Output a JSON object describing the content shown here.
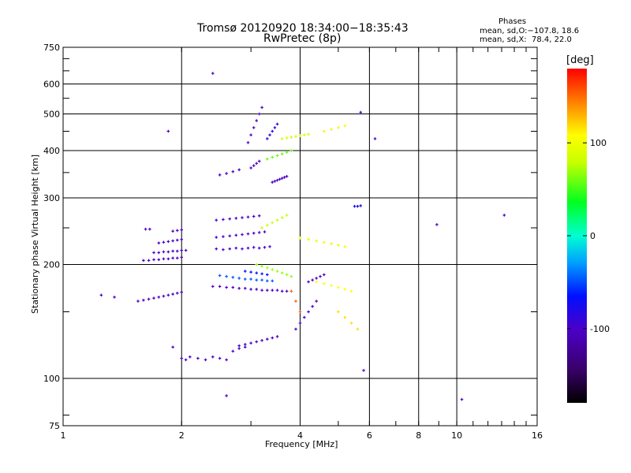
{
  "header": {
    "title_line1": "Tromsø 20120920 18:34:00−18:35:43",
    "title_line2": "RwPretec (8p)",
    "stats_title": "Phases",
    "stats_line1": "mean, sd,O:−107.8, 18.6",
    "stats_line2": "mean, sd,X:  78.4, 22.0"
  },
  "chart_data": {
    "type": "scatter",
    "xlabel": "Frequency [MHz]",
    "ylabel": "Stationary phase Virtual Height [km]",
    "x_scale": "log",
    "y_scale": "log",
    "xlim": [
      1,
      16
    ],
    "ylim": [
      75,
      750
    ],
    "grid": true,
    "x_ticks": [
      1,
      2,
      4,
      6,
      8,
      10,
      16
    ],
    "y_ticks": [
      75,
      100,
      200,
      300,
      400,
      500,
      600,
      750
    ],
    "x_gridlines": [
      2,
      4,
      6,
      8,
      10
    ],
    "y_gridlines": [
      100,
      200,
      300,
      400,
      500,
      600
    ],
    "colorbar": {
      "label": "[deg]",
      "ticks": [
        100,
        0,
        -100
      ],
      "range": [
        -180,
        180
      ]
    },
    "series": [
      {
        "x": [
          1.55,
          1.6,
          1.65,
          1.7,
          1.75,
          1.8,
          1.85,
          1.9,
          1.95,
          2.0
        ],
        "y": [
          160,
          161,
          162,
          163,
          164,
          165,
          166,
          167,
          168,
          169
        ],
        "phase": -110
      },
      {
        "x": [
          1.6,
          1.65,
          1.7,
          1.75,
          1.8,
          1.85,
          1.9,
          1.95,
          2.0
        ],
        "y": [
          205,
          205,
          206,
          206,
          207,
          207,
          208,
          208,
          209
        ],
        "phase": -110
      },
      {
        "x": [
          1.7,
          1.75,
          1.8,
          1.85,
          1.9,
          1.95,
          2.0,
          2.05
        ],
        "y": [
          215,
          215,
          216,
          216,
          217,
          217,
          218,
          218
        ],
        "phase": -110
      },
      {
        "x": [
          1.75,
          1.8,
          1.85,
          1.9,
          1.95,
          2.0
        ],
        "y": [
          228,
          229,
          230,
          231,
          232,
          233
        ],
        "phase": -110
      },
      {
        "x": [
          1.62,
          1.66,
          1.9,
          1.95,
          2.0
        ],
        "y": [
          248,
          248,
          245,
          246,
          247
        ],
        "phase": -110
      },
      {
        "x": [
          2.0,
          2.05,
          2.1,
          2.2,
          2.3,
          2.4,
          2.5,
          2.6,
          2.7,
          2.8,
          2.9
        ],
        "y": [
          113,
          112,
          114,
          113,
          112,
          114,
          113,
          112,
          118,
          120,
          121
        ],
        "phase": -110
      },
      {
        "x": [
          2.4,
          2.5,
          2.6,
          2.7,
          2.8,
          2.9,
          3.0,
          3.1,
          3.2,
          3.3,
          3.4,
          3.5,
          3.6,
          3.7
        ],
        "y": [
          175,
          175,
          174,
          174,
          173,
          173,
          172,
          172,
          171,
          171,
          171,
          171,
          170,
          170
        ],
        "phase": -110
      },
      {
        "x": [
          2.5,
          2.6,
          2.7,
          2.8,
          2.9,
          3.0,
          3.1,
          3.2,
          3.3,
          3.4
        ],
        "y": [
          187,
          186,
          185,
          184,
          183,
          183,
          182,
          182,
          181,
          181
        ],
        "phase": -60
      },
      {
        "x": [
          2.9,
          3.0,
          3.1,
          3.2,
          3.3
        ],
        "y": [
          192,
          191,
          190,
          189,
          188
        ],
        "phase": -80
      },
      {
        "x": [
          2.45,
          2.55,
          2.65,
          2.75,
          2.85,
          2.95,
          3.05,
          3.15,
          3.25,
          3.35
        ],
        "y": [
          220,
          219,
          220,
          221,
          220,
          221,
          222,
          221,
          222,
          223
        ],
        "phase": -110
      },
      {
        "x": [
          2.45,
          2.55,
          2.65,
          2.75,
          2.85,
          2.95,
          3.05,
          3.15,
          3.25
        ],
        "y": [
          236,
          237,
          238,
          239,
          240,
          241,
          242,
          243,
          244
        ],
        "phase": -110
      },
      {
        "x": [
          2.45,
          2.55,
          2.65,
          2.75,
          2.85,
          2.95,
          3.05,
          3.15
        ],
        "y": [
          262,
          263,
          264,
          265,
          266,
          267,
          268,
          269
        ],
        "phase": -110
      },
      {
        "x": [
          2.5,
          2.6,
          2.7,
          2.8
        ],
        "y": [
          345,
          348,
          352,
          356
        ],
        "phase": -110
      },
      {
        "x": [
          2.95,
          3.0,
          3.05,
          3.1,
          3.15,
          3.2
        ],
        "y": [
          420,
          440,
          460,
          480,
          500,
          520
        ],
        "phase": -110
      },
      {
        "x": [
          3.3,
          3.35,
          3.4,
          3.45,
          3.5
        ],
        "y": [
          430,
          440,
          450,
          460,
          470
        ],
        "phase": -100
      },
      {
        "x": [
          3.0,
          3.05,
          3.1,
          3.15
        ],
        "y": [
          360,
          365,
          370,
          375
        ],
        "phase": -110
      },
      {
        "x": [
          3.4,
          3.45,
          3.5,
          3.55,
          3.6,
          3.65,
          3.7
        ],
        "y": [
          330,
          332,
          334,
          336,
          338,
          340,
          342
        ],
        "phase": -110
      },
      {
        "x": [
          2.8,
          2.9,
          3.0,
          3.1,
          3.2,
          3.3,
          3.4,
          3.5
        ],
        "y": [
          122,
          123,
          124,
          125,
          126,
          127,
          128,
          129
        ],
        "phase": -110
      },
      {
        "x": [
          3.9,
          4.0,
          4.1,
          4.2,
          4.3,
          4.4
        ],
        "y": [
          135,
          140,
          145,
          150,
          155,
          160
        ],
        "phase": -110
      },
      {
        "x": [
          4.2,
          4.3,
          4.4,
          4.5,
          4.6
        ],
        "y": [
          180,
          182,
          184,
          186,
          188
        ],
        "phase": -110
      },
      {
        "x": [
          3.1,
          3.2,
          3.3,
          3.4,
          3.5,
          3.6,
          3.7,
          3.8
        ],
        "y": [
          200,
          198,
          196,
          194,
          192,
          190,
          188,
          186
        ],
        "phase": 60
      },
      {
        "x": [
          3.2,
          3.3,
          3.4,
          3.5,
          3.6,
          3.7
        ],
        "y": [
          250,
          254,
          258,
          262,
          266,
          270
        ],
        "phase": 70
      },
      {
        "x": [
          3.3,
          3.4,
          3.5,
          3.6,
          3.7,
          3.8
        ],
        "y": [
          380,
          384,
          388,
          392,
          396,
          400
        ],
        "phase": 50
      },
      {
        "x": [
          3.6,
          3.7,
          3.8,
          3.9,
          4.0,
          4.1,
          4.2
        ],
        "y": [
          430,
          432,
          434,
          436,
          438,
          440,
          442
        ],
        "phase": 75
      },
      {
        "x": [
          4.0,
          4.2,
          4.4,
          4.6,
          4.8,
          5.0,
          5.2
        ],
        "y": [
          235,
          233,
          231,
          229,
          227,
          225,
          223
        ],
        "phase": 90
      },
      {
        "x": [
          4.4,
          4.6,
          4.8,
          5.0,
          5.2,
          5.4
        ],
        "y": [
          180,
          178,
          176,
          174,
          172,
          170
        ],
        "phase": 100
      },
      {
        "x": [
          4.6,
          4.8,
          5.0,
          5.2
        ],
        "y": [
          450,
          455,
          460,
          465
        ],
        "phase": 90
      },
      {
        "x": [
          5.0,
          5.2,
          5.4,
          5.6
        ],
        "y": [
          150,
          145,
          140,
          135
        ],
        "phase": 110
      },
      {
        "x": [
          3.8,
          3.9,
          4.0
        ],
        "y": [
          170,
          160,
          150
        ],
        "phase": 150
      },
      {
        "x": [
          5.5,
          5.6,
          5.7
        ],
        "y": [
          285,
          285,
          286
        ],
        "phase": -90
      },
      {
        "x": [
          1.25,
          1.35,
          1.85,
          1.9,
          2.4,
          5.7,
          6.2,
          8.9,
          10.3,
          13.2,
          5.8,
          2.6
        ],
        "y": [
          166,
          164,
          450,
          121,
          640,
          505,
          430,
          255,
          88,
          270,
          105,
          90
        ],
        "phase": -110
      }
    ]
  }
}
